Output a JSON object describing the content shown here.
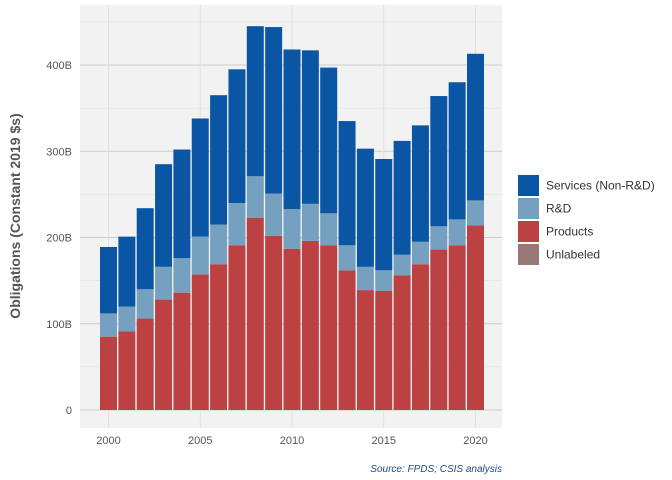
{
  "chart_data": {
    "type": "bar",
    "stacked": true,
    "ylabel": "Obligations (Constant 2019 $s)",
    "ylim": [
      0,
      460
    ],
    "y_tick_values": [
      0,
      100,
      200,
      300,
      400
    ],
    "y_tick_labels": [
      "0",
      "100B",
      "200B",
      "300B",
      "400B"
    ],
    "x_tick_values": [
      2000,
      2005,
      2010,
      2015,
      2020
    ],
    "x_tick_labels": [
      "2000",
      "2005",
      "2010",
      "2015",
      "2020"
    ],
    "categories": [
      2000,
      2001,
      2002,
      2003,
      2004,
      2005,
      2006,
      2007,
      2008,
      2009,
      2010,
      2011,
      2012,
      2013,
      2014,
      2015,
      2016,
      2017,
      2018,
      2019,
      2020
    ],
    "series": [
      {
        "name": "Products",
        "color": "#bc4142",
        "values": [
          85,
          91,
          106,
          128,
          136,
          157,
          169,
          191,
          223,
          202,
          187,
          196,
          191,
          162,
          139,
          138,
          156,
          169,
          186,
          191,
          214
        ]
      },
      {
        "name": "R&D",
        "color": "#76a0c0",
        "values": [
          27,
          29,
          34,
          38,
          40,
          44,
          46,
          49,
          48,
          49,
          46,
          43,
          37,
          29,
          27,
          24,
          24,
          26,
          27,
          30,
          29
        ]
      },
      {
        "name": "Services (Non-R&D)",
        "color": "#0b56a4",
        "values": [
          77,
          81,
          94,
          119,
          126,
          137,
          150,
          155,
          174,
          193,
          185,
          178,
          169,
          144,
          137,
          129,
          132,
          135,
          151,
          159,
          170
        ]
      },
      {
        "name": "Unlabeled",
        "color": "#977a77",
        "values": [
          0,
          0,
          0,
          0,
          0,
          0,
          0,
          0,
          0,
          0,
          0,
          0,
          0,
          0,
          0,
          0,
          0,
          0,
          0,
          0,
          0
        ]
      }
    ],
    "legend": {
      "placement": "right",
      "order": [
        "Services (Non-R&D)",
        "R&D",
        "Products",
        "Unlabeled"
      ]
    },
    "grid": true,
    "caption": "Source: FPDS; CSIS analysis"
  }
}
